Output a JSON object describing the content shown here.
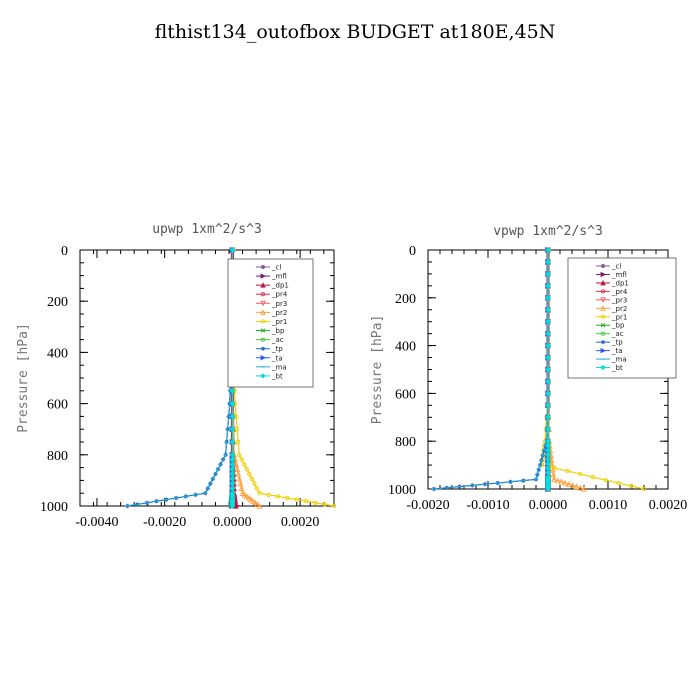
{
  "title": "flthist134_outofbox  BUDGET at180E,45N",
  "chart_data": [
    {
      "type": "line",
      "title": "upwp   1xm^2/s^3",
      "ylabel": "Pressure [hPa]",
      "xlabel": "",
      "xlim": [
        -0.0045,
        0.003
      ],
      "ylim": [
        1000,
        0
      ],
      "xticks": [
        -0.004,
        -0.002,
        0.0,
        0.002
      ],
      "xtick_labels": [
        "-0.0040",
        "-0.0020",
        "0.0000",
        "0.0020"
      ],
      "yticks": [
        0,
        200,
        400,
        600,
        800,
        1000
      ],
      "ytick_labels": [
        "0",
        "200",
        "400",
        "600",
        "800",
        "1000"
      ],
      "legend_position": "upper-right",
      "series": [
        {
          "name": "_cl",
          "color": "#8a5a9e",
          "marker": "circle",
          "x": [
            0,
            0,
            0,
            0,
            0,
            0,
            0
          ],
          "y": [
            0,
            200,
            400,
            600,
            800,
            950,
            1000
          ]
        },
        {
          "name": "_mfl",
          "color": "#7a1f6e",
          "marker": "triangle-right",
          "x": [
            0,
            0,
            0,
            0,
            0,
            0,
            0
          ],
          "y": [
            0,
            200,
            400,
            600,
            800,
            950,
            1000
          ]
        },
        {
          "name": "_dp1",
          "color": "#c0143c",
          "marker": "triangle-up",
          "x": [
            0,
            0,
            0,
            0,
            2e-05,
            5e-05,
            0.0001
          ],
          "y": [
            0,
            200,
            400,
            600,
            800,
            950,
            1000
          ]
        },
        {
          "name": "_pr4",
          "color": "#e0304a",
          "marker": "circle-open",
          "x": [
            0,
            0,
            0,
            0,
            0,
            0,
            0
          ],
          "y": [
            0,
            200,
            400,
            600,
            800,
            950,
            1000
          ]
        },
        {
          "name": "_pr3",
          "color": "#ff5a5a",
          "marker": "triangle-down",
          "x": [
            0,
            0,
            0,
            0,
            0,
            0,
            0
          ],
          "y": [
            0,
            200,
            400,
            600,
            800,
            950,
            1000
          ]
        },
        {
          "name": "_pr2",
          "color": "#ffa040",
          "marker": "triangle-up-open",
          "x": [
            0,
            0,
            0,
            1e-05,
            5e-05,
            0.0003,
            0.0008
          ],
          "y": [
            0,
            200,
            400,
            600,
            800,
            950,
            1000
          ]
        },
        {
          "name": "_pr1",
          "color": "#f0d000",
          "marker": "circle-open",
          "x": [
            0,
            0,
            3e-05,
            8e-05,
            0.0002,
            0.0008,
            0.003
          ],
          "y": [
            0,
            200,
            400,
            600,
            800,
            950,
            1000
          ]
        },
        {
          "name": "_bp",
          "color": "#22aa22",
          "marker": "x",
          "x": [
            0,
            0,
            0,
            0,
            0,
            -2e-05,
            -5e-05
          ],
          "y": [
            0,
            200,
            400,
            600,
            800,
            950,
            1000
          ]
        },
        {
          "name": "_ac",
          "color": "#44cc44",
          "marker": "circle-open",
          "x": [
            0,
            0,
            0,
            0,
            0,
            0,
            0
          ],
          "y": [
            0,
            200,
            400,
            600,
            800,
            950,
            1000
          ]
        },
        {
          "name": "_tp",
          "color": "#2266cc",
          "marker": "star",
          "x": [
            0,
            0,
            -3e-05,
            -8e-05,
            -0.0002,
            -0.0008,
            -0.0031
          ],
          "y": [
            0,
            200,
            400,
            600,
            800,
            950,
            1000
          ]
        },
        {
          "name": "_ta",
          "color": "#3355ff",
          "marker": "triangle-right",
          "x": [
            0,
            0,
            0,
            0,
            0,
            0,
            0
          ],
          "y": [
            0,
            200,
            400,
            600,
            800,
            950,
            1000
          ]
        },
        {
          "name": "_ma",
          "color": "#22aacc",
          "marker": "dash",
          "x": [
            0,
            0,
            -3e-05,
            -8e-05,
            -0.0002,
            -0.0008,
            -0.0031
          ],
          "y": [
            0,
            200,
            400,
            600,
            800,
            950,
            1000
          ]
        },
        {
          "name": "_bt",
          "color": "#00dddd",
          "marker": "diamond",
          "x": [
            0,
            0,
            0,
            0,
            0,
            0,
            0
          ],
          "y": [
            0,
            200,
            400,
            600,
            800,
            950,
            1000
          ]
        }
      ]
    },
    {
      "type": "line",
      "title": "vpwp   1xm^2/s^3",
      "ylabel": "Pressure [hPa]",
      "xlabel": "",
      "xlim": [
        -0.002,
        0.002
      ],
      "ylim": [
        1000,
        0
      ],
      "xticks": [
        -0.002,
        -0.001,
        0.0,
        0.001,
        0.002
      ],
      "xtick_labels": [
        "-0.0020",
        "-0.0010",
        "0.0000",
        "0.0010",
        "0.0020"
      ],
      "yticks": [
        0,
        200,
        400,
        600,
        800,
        1000
      ],
      "ytick_labels": [
        "0",
        "200",
        "400",
        "600",
        "800",
        "1000"
      ],
      "legend_position": "upper-right",
      "series": [
        {
          "name": "_cl",
          "color": "#8a5a9e",
          "marker": "circle",
          "x": [
            0,
            0,
            0,
            0,
            0,
            0,
            0
          ],
          "y": [
            0,
            200,
            400,
            600,
            800,
            950,
            1000
          ]
        },
        {
          "name": "_mfl",
          "color": "#7a1f6e",
          "marker": "triangle-right",
          "x": [
            0,
            0,
            0,
            0,
            0,
            0,
            0
          ],
          "y": [
            0,
            200,
            400,
            600,
            800,
            950,
            1000
          ]
        },
        {
          "name": "_dp1",
          "color": "#c0143c",
          "marker": "triangle-up",
          "x": [
            0,
            0,
            0,
            0,
            0,
            0,
            0
          ],
          "y": [
            0,
            200,
            400,
            600,
            800,
            950,
            1000
          ]
        },
        {
          "name": "_pr4",
          "color": "#e0304a",
          "marker": "circle-open",
          "x": [
            0,
            0,
            0,
            0,
            0,
            0,
            0
          ],
          "y": [
            0,
            200,
            400,
            600,
            800,
            950,
            1000
          ]
        },
        {
          "name": "_pr3",
          "color": "#ff5a5a",
          "marker": "triangle-down",
          "x": [
            0,
            0,
            0,
            0,
            0,
            0,
            0
          ],
          "y": [
            0,
            200,
            400,
            600,
            800,
            950,
            1000
          ]
        },
        {
          "name": "_pr2",
          "color": "#ffa040",
          "marker": "triangle-up-open",
          "x": [
            0,
            0,
            0,
            0,
            2e-05,
            0.0001,
            0.0006
          ],
          "y": [
            0,
            200,
            400,
            600,
            800,
            960,
            1000
          ]
        },
        {
          "name": "_pr1",
          "color": "#f0d000",
          "marker": "circle-open",
          "x": [
            0,
            0,
            0,
            0,
            -5e-05,
            -0.0001,
            0.0016
          ],
          "y": [
            0,
            200,
            400,
            600,
            800,
            900,
            1000
          ]
        },
        {
          "name": "_bp",
          "color": "#22aa22",
          "marker": "x",
          "x": [
            0,
            0,
            0,
            0,
            0,
            0,
            0
          ],
          "y": [
            0,
            200,
            400,
            600,
            800,
            950,
            1000
          ]
        },
        {
          "name": "_ac",
          "color": "#44cc44",
          "marker": "circle-open",
          "x": [
            0,
            0,
            0,
            0,
            0,
            0,
            0
          ],
          "y": [
            0,
            200,
            400,
            600,
            800,
            950,
            1000
          ]
        },
        {
          "name": "_tp",
          "color": "#2266cc",
          "marker": "star",
          "x": [
            0,
            0,
            0,
            0,
            -2e-05,
            -0.0002,
            -0.0019
          ],
          "y": [
            0,
            200,
            400,
            600,
            800,
            960,
            1000
          ]
        },
        {
          "name": "_ta",
          "color": "#3355ff",
          "marker": "triangle-right",
          "x": [
            0,
            0,
            0,
            0,
            0,
            0,
            0
          ],
          "y": [
            0,
            200,
            400,
            600,
            800,
            950,
            1000
          ]
        },
        {
          "name": "_ma",
          "color": "#22aacc",
          "marker": "dash",
          "x": [
            0,
            0,
            0,
            0,
            -2e-05,
            -0.0002,
            -0.0019
          ],
          "y": [
            0,
            200,
            400,
            600,
            800,
            960,
            1000
          ]
        },
        {
          "name": "_bt",
          "color": "#00dddd",
          "marker": "diamond",
          "x": [
            0,
            0,
            0,
            0,
            0,
            0,
            0
          ],
          "y": [
            0,
            200,
            400,
            600,
            800,
            950,
            1000
          ]
        }
      ]
    }
  ]
}
